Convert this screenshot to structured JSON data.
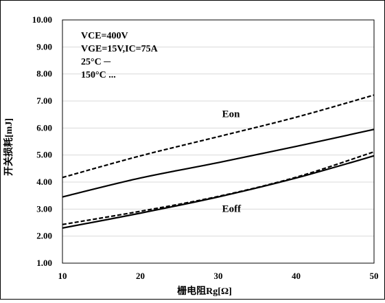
{
  "chart_data": {
    "type": "line",
    "title": "",
    "xlabel": "栅电阻Rg[Ω]",
    "ylabel": "开关损耗[mJ]",
    "xlim": [
      10,
      50
    ],
    "ylim": [
      1.0,
      10.0
    ],
    "x_ticks": [
      "10",
      "20",
      "30",
      "40",
      "50"
    ],
    "y_ticks": [
      "1.00",
      "2.00",
      "3.00",
      "4.00",
      "5.00",
      "6.00",
      "7.00",
      "8.00",
      "9.00",
      "10.00"
    ],
    "grid": "horizontal",
    "conditions": [
      "VCE=400V",
      "VGE=15V,IC=75A",
      "25°C  ─",
      "150°C  ..."
    ],
    "series": [
      {
        "label": "Eon",
        "temperature": "25°C",
        "style": "solid",
        "x": [
          10,
          20,
          30,
          40,
          50
        ],
        "y": [
          3.45,
          4.15,
          4.72,
          5.32,
          5.95
        ]
      },
      {
        "label": "Eon",
        "temperature": "150°C",
        "style": "dashed",
        "x": [
          10,
          20,
          30,
          40,
          50
        ],
        "y": [
          4.17,
          4.97,
          5.68,
          6.4,
          7.22
        ]
      },
      {
        "label": "Eoff",
        "temperature": "25°C",
        "style": "solid",
        "x": [
          10,
          20,
          30,
          40,
          50
        ],
        "y": [
          2.3,
          2.85,
          3.45,
          4.15,
          4.97
        ]
      },
      {
        "label": "Eoff",
        "temperature": "150°C",
        "style": "dashed",
        "x": [
          10,
          20,
          30,
          40,
          50
        ],
        "y": [
          2.43,
          2.92,
          3.47,
          4.18,
          5.12
        ]
      }
    ],
    "annotations": [
      {
        "text": "Eon",
        "x": 30.5,
        "y": 6.4
      },
      {
        "text": "Eoff",
        "x": 30.5,
        "y": 2.9
      }
    ]
  }
}
